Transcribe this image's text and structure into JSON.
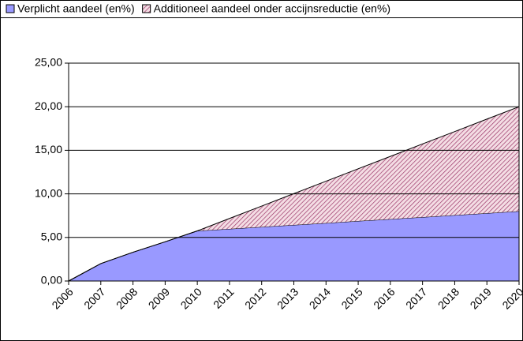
{
  "chart_data": {
    "type": "stacked-area",
    "categories": [
      "2006",
      "2007",
      "2008",
      "2009",
      "2010",
      "2011",
      "2012",
      "2013",
      "2014",
      "2015",
      "2016",
      "2017",
      "2018",
      "2019",
      "2020"
    ],
    "series": [
      {
        "name": "Verplicht aandeel (en%)",
        "color": "#9999ff",
        "pattern": "solid",
        "values": [
          0,
          2.0,
          3.3,
          4.5,
          5.75,
          5.98,
          6.2,
          6.43,
          6.65,
          6.88,
          7.1,
          7.33,
          7.55,
          7.78,
          8.0
        ]
      },
      {
        "name": "Additioneel aandeel onder accijnsreductie (en%)",
        "color": "#993366",
        "pattern": "hatch",
        "values": [
          0,
          0,
          0,
          0,
          0,
          1.2,
          2.4,
          3.6,
          4.8,
          6.0,
          7.2,
          8.4,
          9.6,
          10.8,
          12.0
        ]
      }
    ],
    "ylim": [
      0,
      25
    ],
    "yticks": [
      {
        "value": 0,
        "label": "0,00"
      },
      {
        "value": 5,
        "label": "5,00"
      },
      {
        "value": 10,
        "label": "10,00"
      },
      {
        "value": 15,
        "label": "15,00"
      },
      {
        "value": 20,
        "label": "20,00"
      },
      {
        "value": 25,
        "label": "25,00"
      }
    ],
    "grid": true,
    "legend": "top"
  }
}
